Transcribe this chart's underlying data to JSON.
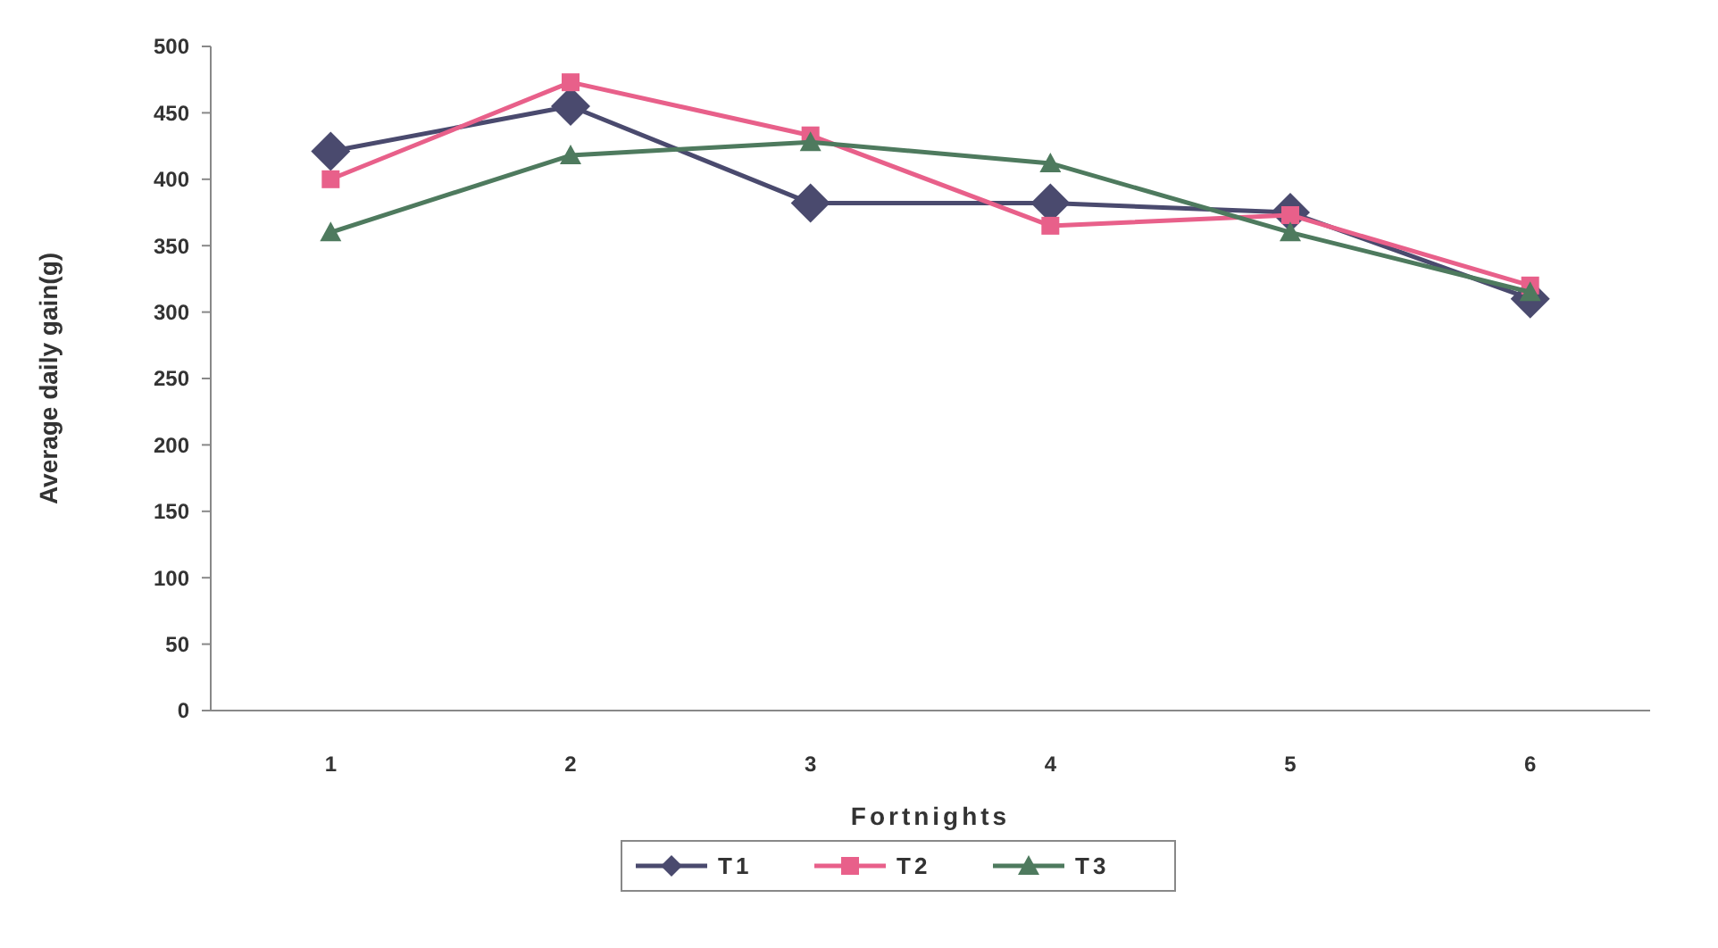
{
  "chart_data": {
    "type": "line",
    "xlabel": "Fortnights",
    "ylabel": "Average daily gain(g)",
    "categories": [
      "1",
      "2",
      "3",
      "4",
      "5",
      "6"
    ],
    "ylim": [
      0,
      500
    ],
    "yticks": [
      0,
      50,
      100,
      150,
      200,
      250,
      300,
      350,
      400,
      450,
      500
    ],
    "grid": false,
    "legend": "bottom",
    "line_style": "solid",
    "series": [
      {
        "name": "T1",
        "color": "#4a4a6e",
        "marker": "diamond",
        "values": [
          421,
          455,
          382,
          382,
          375,
          310
        ]
      },
      {
        "name": "T2",
        "color": "#e8608a",
        "marker": "square",
        "values": [
          400,
          473,
          433,
          365,
          373,
          320
        ]
      },
      {
        "name": "T3",
        "color": "#4e7a5e",
        "marker": "triangle",
        "values": [
          360,
          418,
          428,
          412,
          360,
          315
        ]
      }
    ]
  }
}
